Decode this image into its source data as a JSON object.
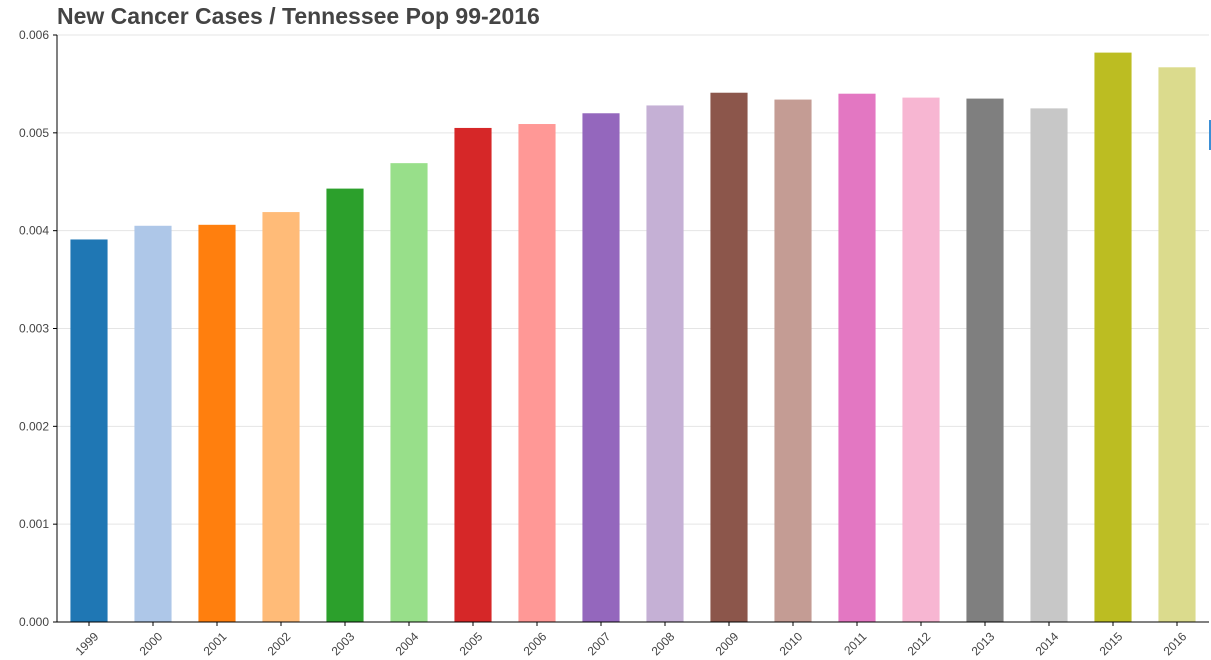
{
  "chart_data": {
    "type": "bar",
    "title": "New Cancer Cases / Tennessee Pop 99-2016",
    "xlabel": "",
    "ylabel": "",
    "ylim": [
      0,
      0.006
    ],
    "yticks": [
      "0.000",
      "0.001",
      "0.002",
      "0.003",
      "0.004",
      "0.005",
      "0.006"
    ],
    "grid": true,
    "categories": [
      "1999",
      "2000",
      "2001",
      "2002",
      "2003",
      "2004",
      "2005",
      "2006",
      "2007",
      "2008",
      "2009",
      "2010",
      "2011",
      "2012",
      "2013",
      "2014",
      "2015",
      "2016"
    ],
    "values": [
      0.00391,
      0.00405,
      0.00406,
      0.00419,
      0.00443,
      0.00469,
      0.00505,
      0.00509,
      0.0052,
      0.00528,
      0.00541,
      0.00534,
      0.0054,
      0.00536,
      0.00535,
      0.00525,
      0.00582,
      0.00567
    ],
    "colors": [
      "#1f77b4",
      "#aec7e8",
      "#ff7f0e",
      "#ffbb78",
      "#2ca02c",
      "#98df8a",
      "#d62728",
      "#ff9896",
      "#9467bd",
      "#c5b0d5",
      "#8c564b",
      "#c49c94",
      "#e377c2",
      "#f7b6d2",
      "#7f7f7f",
      "#c7c7c7",
      "#bcbd22",
      "#dbdb8d"
    ]
  }
}
